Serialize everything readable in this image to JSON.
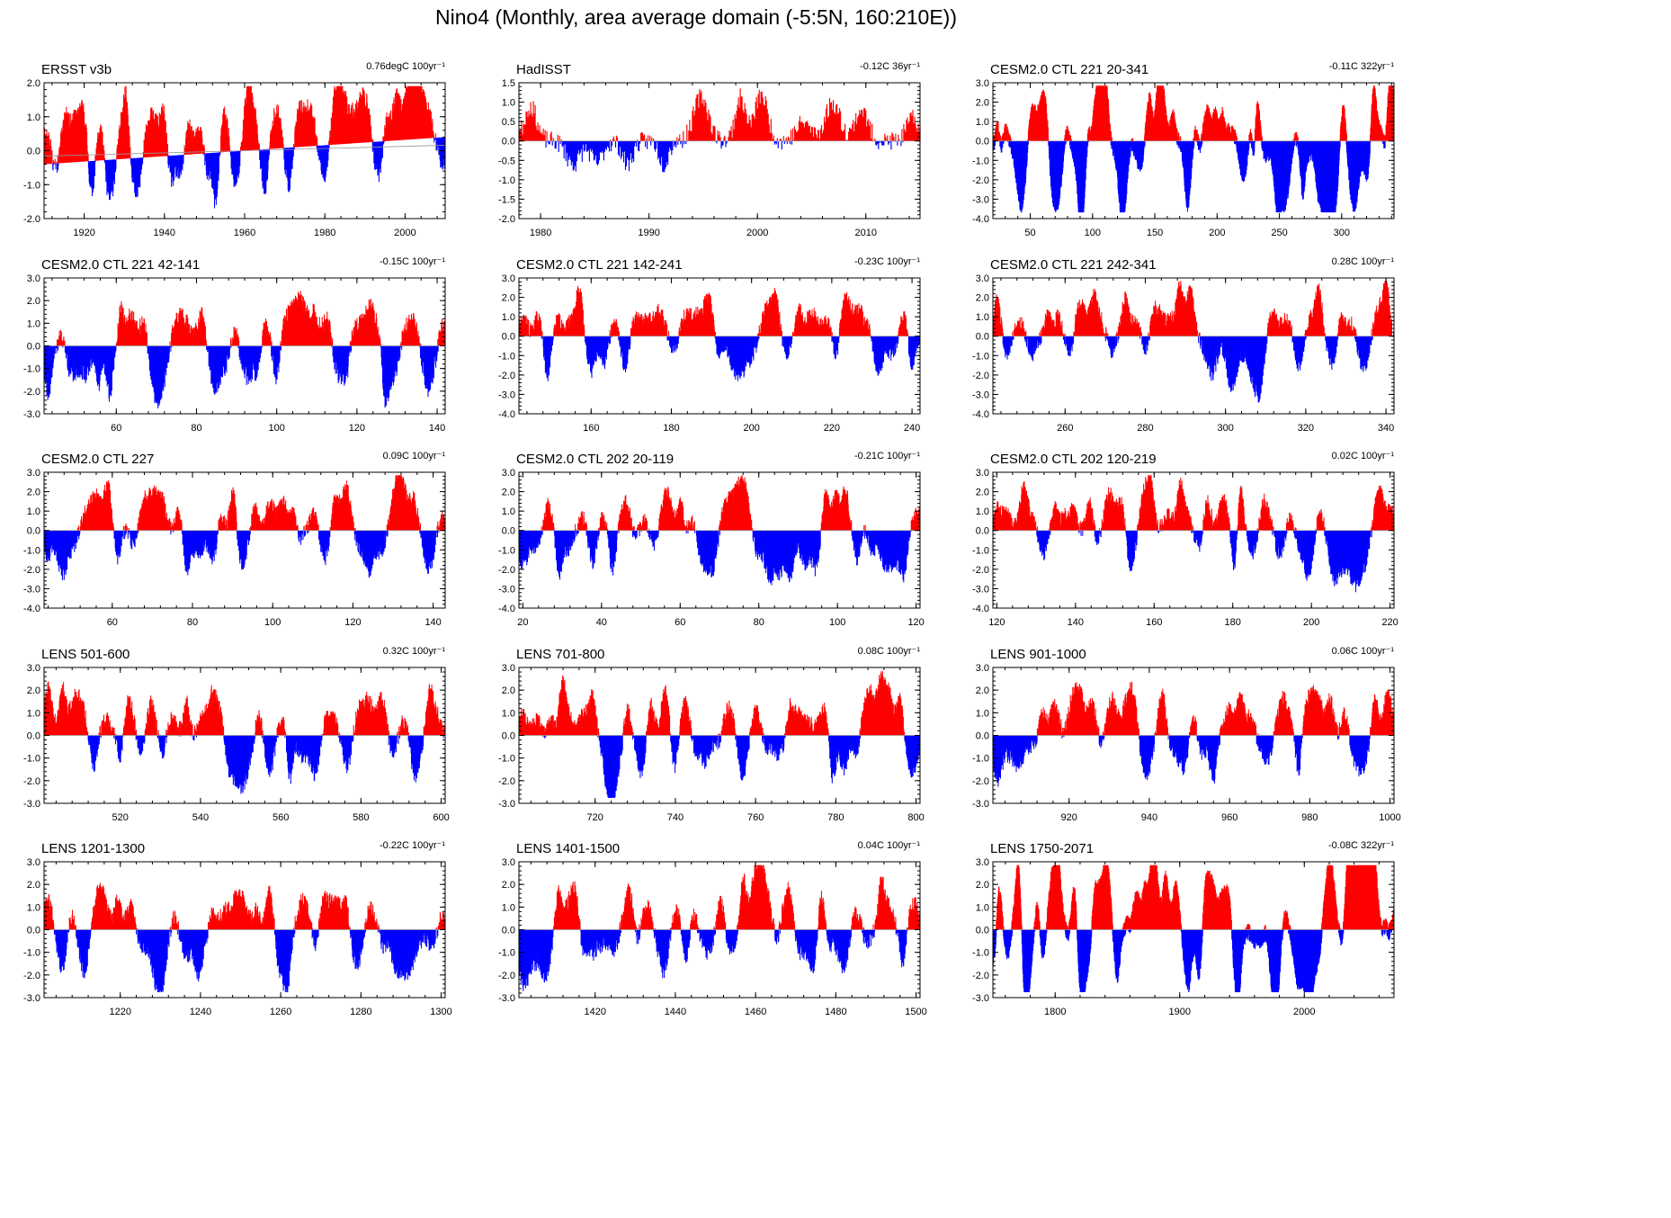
{
  "figure_title": "Nino4 (Monthly, area average domain (-5:5N, 160:210E))",
  "colors": {
    "positive": "#ff0000",
    "negative": "#0000ff",
    "frame": "#000000",
    "zero_line": "#999999"
  },
  "chart_data": [
    {
      "type": "area",
      "title": "ERSST v3b",
      "trend": "0.76degC 100yr⁻¹",
      "xlim": [
        1910,
        2010
      ],
      "xticks": [
        1920,
        1940,
        1960,
        1980,
        2000
      ],
      "ylim": [
        -2.0,
        2.0
      ],
      "yticks": [
        -2.0,
        -1.0,
        0.0,
        1.0,
        2.0
      ],
      "ytick_labels": [
        "-2.0",
        "-1.0",
        "0.0",
        "1.0",
        "2.0"
      ],
      "baseline_start": -0.4,
      "baseline_end": 0.4,
      "amplitude": 0.8,
      "events_per_decade": 4.5,
      "seed": 11
    },
    {
      "type": "area",
      "title": "HadISST",
      "trend": "-0.12C 36yr⁻¹",
      "xlim": [
        1978,
        2015
      ],
      "xticks": [
        1980,
        1990,
        2000,
        2010
      ],
      "ylim": [
        -2.0,
        1.5
      ],
      "yticks": [
        -2.0,
        -1.5,
        -1.0,
        -0.5,
        0.0,
        0.5,
        1.0,
        1.5
      ],
      "ytick_labels": [
        "-2.0",
        "-1.5",
        "-1.0",
        "-0.5",
        "0.0",
        "0.5",
        "1.0",
        "1.5"
      ],
      "baseline_start": 0.0,
      "baseline_end": 0.0,
      "amplitude": 0.7,
      "events_per_decade": 3.2,
      "seed": 23
    },
    {
      "type": "area",
      "title": "CESM2.0 CTL 221 20-341",
      "trend": "-0.11C 322yr⁻¹",
      "xlim": [
        20,
        342
      ],
      "xticks": [
        50,
        100,
        150,
        200,
        250,
        300
      ],
      "ylim": [
        -4.0,
        3.0
      ],
      "yticks": [
        -4.0,
        -3.0,
        -2.0,
        -1.0,
        0.0,
        1.0,
        2.0,
        3.0
      ],
      "ytick_labels": [
        "-4.0",
        "-3.0",
        "-2.0",
        "-1.0",
        "0.0",
        "1.0",
        "2.0",
        "3.0"
      ],
      "baseline_start": 0.0,
      "baseline_end": 0.0,
      "amplitude": 1.2,
      "events_per_decade": 3.5,
      "seed": 37
    },
    {
      "type": "area",
      "title": "CESM2.0 CTL 221 42-141",
      "trend": "-0.15C 100yr⁻¹",
      "xlim": [
        42,
        142
      ],
      "xticks": [
        60,
        80,
        100,
        120,
        140
      ],
      "ylim": [
        -3.0,
        3.0
      ],
      "yticks": [
        -3.0,
        -2.0,
        -1.0,
        0.0,
        1.0,
        2.0,
        3.0
      ],
      "ytick_labels": [
        "-3.0",
        "-2.0",
        "-1.0",
        "0.0",
        "1.0",
        "2.0",
        "3.0"
      ],
      "baseline_start": 0.0,
      "baseline_end": 0.0,
      "amplitude": 1.2,
      "events_per_decade": 3.5,
      "seed": 41
    },
    {
      "type": "area",
      "title": "CESM2.0 CTL 221 142-241",
      "trend": "-0.23C 100yr⁻¹",
      "xlim": [
        142,
        242
      ],
      "xticks": [
        160,
        180,
        200,
        220,
        240
      ],
      "ylim": [
        -4.0,
        3.0
      ],
      "yticks": [
        -4.0,
        -3.0,
        -2.0,
        -1.0,
        0.0,
        1.0,
        2.0,
        3.0
      ],
      "ytick_labels": [
        "-4.0",
        "-3.0",
        "-2.0",
        "-1.0",
        "0.0",
        "1.0",
        "2.0",
        "3.0"
      ],
      "baseline_start": 0.0,
      "baseline_end": 0.0,
      "amplitude": 1.2,
      "events_per_decade": 3.5,
      "seed": 53
    },
    {
      "type": "area",
      "title": "CESM2.0 CTL 221 242-341",
      "trend": "0.28C 100yr⁻¹",
      "xlim": [
        242,
        342
      ],
      "xticks": [
        260,
        280,
        300,
        320,
        340
      ],
      "ylim": [
        -4.0,
        3.0
      ],
      "yticks": [
        -4.0,
        -3.0,
        -2.0,
        -1.0,
        0.0,
        1.0,
        2.0,
        3.0
      ],
      "ytick_labels": [
        "-4.0",
        "-3.0",
        "-2.0",
        "-1.0",
        "0.0",
        "1.0",
        "2.0",
        "3.0"
      ],
      "baseline_start": 0.0,
      "baseline_end": 0.0,
      "amplitude": 1.2,
      "events_per_decade": 3.5,
      "seed": 67
    },
    {
      "type": "area",
      "title": "CESM2.0 CTL 227",
      "trend": "0.09C 100yr⁻¹",
      "xlim": [
        43,
        143
      ],
      "xticks": [
        60,
        80,
        100,
        120,
        140
      ],
      "ylim": [
        -4.0,
        3.0
      ],
      "yticks": [
        -4.0,
        -3.0,
        -2.0,
        -1.0,
        0.0,
        1.0,
        2.0,
        3.0
      ],
      "ytick_labels": [
        "-4.0",
        "-3.0",
        "-2.0",
        "-1.0",
        "0.0",
        "1.0",
        "2.0",
        "3.0"
      ],
      "baseline_start": 0.0,
      "baseline_end": 0.0,
      "amplitude": 1.2,
      "events_per_decade": 3.5,
      "seed": 71
    },
    {
      "type": "area",
      "title": "CESM2.0 CTL 202 20-119",
      "trend": "-0.21C 100yr⁻¹",
      "xlim": [
        19,
        121
      ],
      "xticks": [
        20,
        40,
        60,
        80,
        100,
        120
      ],
      "ylim": [
        -4.0,
        3.0
      ],
      "yticks": [
        -4.0,
        -3.0,
        -2.0,
        -1.0,
        0.0,
        1.0,
        2.0,
        3.0
      ],
      "ytick_labels": [
        "-4.0",
        "-3.0",
        "-2.0",
        "-1.0",
        "0.0",
        "1.0",
        "2.0",
        "3.0"
      ],
      "baseline_start": 0.0,
      "baseline_end": 0.0,
      "amplitude": 1.2,
      "events_per_decade": 3.5,
      "seed": 83
    },
    {
      "type": "area",
      "title": "CESM2.0 CTL 202 120-219",
      "trend": "0.02C 100yr⁻¹",
      "xlim": [
        119,
        221
      ],
      "xticks": [
        120,
        140,
        160,
        180,
        200,
        220
      ],
      "ylim": [
        -4.0,
        3.0
      ],
      "yticks": [
        -4.0,
        -3.0,
        -2.0,
        -1.0,
        0.0,
        1.0,
        2.0,
        3.0
      ],
      "ytick_labels": [
        "-4.0",
        "-3.0",
        "-2.0",
        "-1.0",
        "0.0",
        "1.0",
        "2.0",
        "3.0"
      ],
      "baseline_start": 0.0,
      "baseline_end": 0.0,
      "amplitude": 1.2,
      "events_per_decade": 3.5,
      "seed": 97
    },
    {
      "type": "area",
      "title": "LENS 501-600",
      "trend": "0.32C 100yr⁻¹",
      "xlim": [
        501,
        601
      ],
      "xticks": [
        520,
        540,
        560,
        580,
        600
      ],
      "ylim": [
        -3.0,
        3.0
      ],
      "yticks": [
        -3.0,
        -2.0,
        -1.0,
        0.0,
        1.0,
        2.0,
        3.0
      ],
      "ytick_labels": [
        "-3.0",
        "-2.0",
        "-1.0",
        "0.0",
        "1.0",
        "2.0",
        "3.0"
      ],
      "baseline_start": 0.0,
      "baseline_end": 0.0,
      "amplitude": 1.1,
      "events_per_decade": 3.5,
      "seed": 101
    },
    {
      "type": "area",
      "title": "LENS 701-800",
      "trend": "0.08C 100yr⁻¹",
      "xlim": [
        701,
        801
      ],
      "xticks": [
        720,
        740,
        760,
        780,
        800
      ],
      "ylim": [
        -3.0,
        3.0
      ],
      "yticks": [
        -3.0,
        -2.0,
        -1.0,
        0.0,
        1.0,
        2.0,
        3.0
      ],
      "ytick_labels": [
        "-3.0",
        "-2.0",
        "-1.0",
        "0.0",
        "1.0",
        "2.0",
        "3.0"
      ],
      "baseline_start": 0.0,
      "baseline_end": 0.0,
      "amplitude": 1.1,
      "events_per_decade": 3.5,
      "seed": 113
    },
    {
      "type": "area",
      "title": "LENS 901-1000",
      "trend": "0.06C 100yr⁻¹",
      "xlim": [
        901,
        1001
      ],
      "xticks": [
        920,
        940,
        960,
        980,
        1000
      ],
      "ylim": [
        -3.0,
        3.0
      ],
      "yticks": [
        -3.0,
        -2.0,
        -1.0,
        0.0,
        1.0,
        2.0,
        3.0
      ],
      "ytick_labels": [
        "-3.0",
        "-2.0",
        "-1.0",
        "0.0",
        "1.0",
        "2.0",
        "3.0"
      ],
      "baseline_start": 0.0,
      "baseline_end": 0.0,
      "amplitude": 1.1,
      "events_per_decade": 3.5,
      "seed": 127
    },
    {
      "type": "area",
      "title": "LENS 1201-1300",
      "trend": "-0.22C 100yr⁻¹",
      "xlim": [
        1201,
        1301
      ],
      "xticks": [
        1220,
        1240,
        1260,
        1280,
        1300
      ],
      "ylim": [
        -3.0,
        3.0
      ],
      "yticks": [
        -3.0,
        -2.0,
        -1.0,
        0.0,
        1.0,
        2.0,
        3.0
      ],
      "ytick_labels": [
        "-3.0",
        "-2.0",
        "-1.0",
        "0.0",
        "1.0",
        "2.0",
        "3.0"
      ],
      "baseline_start": 0.0,
      "baseline_end": 0.0,
      "amplitude": 1.1,
      "events_per_decade": 3.5,
      "seed": 131
    },
    {
      "type": "area",
      "title": "LENS 1401-1500",
      "trend": "0.04C 100yr⁻¹",
      "xlim": [
        1401,
        1501
      ],
      "xticks": [
        1420,
        1440,
        1460,
        1480,
        1500
      ],
      "ylim": [
        -3.0,
        3.0
      ],
      "yticks": [
        -3.0,
        -2.0,
        -1.0,
        0.0,
        1.0,
        2.0,
        3.0
      ],
      "ytick_labels": [
        "-3.0",
        "-2.0",
        "-1.0",
        "0.0",
        "1.0",
        "2.0",
        "3.0"
      ],
      "baseline_start": 0.0,
      "baseline_end": 0.0,
      "amplitude": 1.1,
      "events_per_decade": 3.5,
      "seed": 139
    },
    {
      "type": "area",
      "title": "LENS 1750-2071",
      "trend": "-0.08C 322yr⁻¹",
      "xlim": [
        1750,
        2072
      ],
      "xticks": [
        1800,
        1900,
        2000
      ],
      "ylim": [
        -3.0,
        3.0
      ],
      "yticks": [
        -3.0,
        -2.0,
        -1.0,
        0.0,
        1.0,
        2.0,
        3.0
      ],
      "ytick_labels": [
        "-3.0",
        "-2.0",
        "-1.0",
        "0.0",
        "1.0",
        "2.0",
        "3.0"
      ],
      "baseline_start": 0.0,
      "baseline_end": 0.0,
      "amplitude": 1.1,
      "events_per_decade": 3.5,
      "seed": 149
    }
  ]
}
